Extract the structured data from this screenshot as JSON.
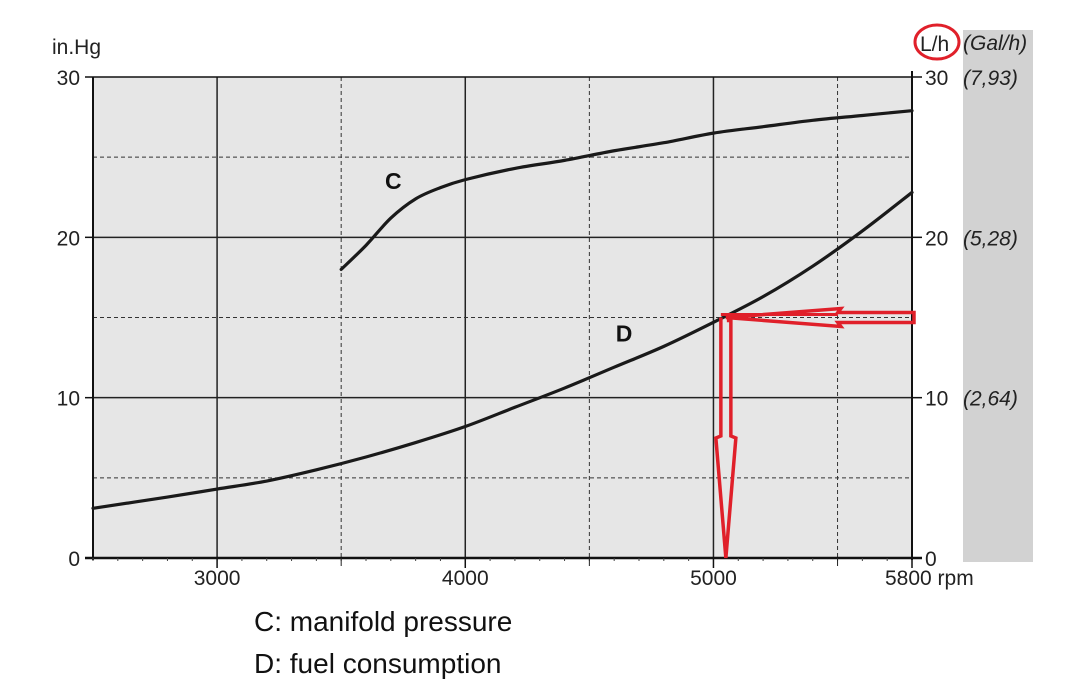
{
  "chart_data": {
    "type": "line",
    "left_axis_unit": "in.Hg",
    "right_axis_unit": "L/h",
    "right_axis_alt_unit": "(Gal/h)",
    "x_unit": "rpm",
    "x_range": [
      2500,
      5800
    ],
    "ylim": [
      0,
      30
    ],
    "x_ticks": [
      {
        "value": 3000,
        "label": "3000"
      },
      {
        "value": 4000,
        "label": "4000"
      },
      {
        "value": 5000,
        "label": "5000"
      },
      {
        "value": 5800,
        "label": "5800 rpm"
      }
    ],
    "x_minor_gridlines": [
      3500,
      4500,
      5500
    ],
    "left_ticks": [
      {
        "value": 0,
        "label": "0"
      },
      {
        "value": 10,
        "label": "10"
      },
      {
        "value": 20,
        "label": "20"
      },
      {
        "value": 30,
        "label": "30"
      }
    ],
    "right_ticks": [
      {
        "value": 0,
        "label": "0",
        "gal": ""
      },
      {
        "value": 10,
        "label": "10",
        "gal": "(2,64)"
      },
      {
        "value": 20,
        "label": "20",
        "gal": "(5,28)"
      },
      {
        "value": 30,
        "label": "30",
        "gal": "(7,93)"
      }
    ],
    "y_minor_gridlines": [
      5,
      15,
      25
    ],
    "series": [
      {
        "name": "C",
        "label_at": {
          "x": 3710,
          "y": 23
        },
        "x": [
          3500,
          3600,
          3700,
          3800,
          3900,
          4000,
          4200,
          4400,
          4600,
          4800,
          5000,
          5200,
          5400,
          5600,
          5800
        ],
        "values": [
          18,
          19.5,
          21.2,
          22.4,
          23.1,
          23.6,
          24.3,
          24.8,
          25.4,
          25.9,
          26.5,
          26.9,
          27.3,
          27.6,
          27.9
        ]
      },
      {
        "name": "D",
        "label_at": {
          "x": 4640,
          "y": 13.5
        },
        "x": [
          2500,
          2800,
          3000,
          3200,
          3400,
          3600,
          3800,
          4000,
          4200,
          4400,
          4600,
          4800,
          5000,
          5200,
          5400,
          5600,
          5800
        ],
        "values": [
          3.1,
          3.8,
          4.3,
          4.8,
          5.5,
          6.3,
          7.2,
          8.2,
          9.4,
          10.6,
          11.9,
          13.2,
          14.7,
          16.3,
          18.2,
          20.4,
          22.8
        ]
      }
    ],
    "annotations": {
      "arrow_horizontal": {
        "from_x": 5800,
        "to_x": 5050,
        "y": 15
      },
      "arrow_vertical": {
        "x": 5050,
        "from_y": 15,
        "to_y": 0
      },
      "circled_label": "L/h",
      "color": "#e0202a"
    }
  },
  "legend": [
    "C: manifold pressure",
    "D: fuel consumption"
  ],
  "colors": {
    "plot_background": "#e6e6e6",
    "side_band": "#d2d2d2",
    "curve": "#1a1a1a",
    "annotation": "#e0202a"
  }
}
